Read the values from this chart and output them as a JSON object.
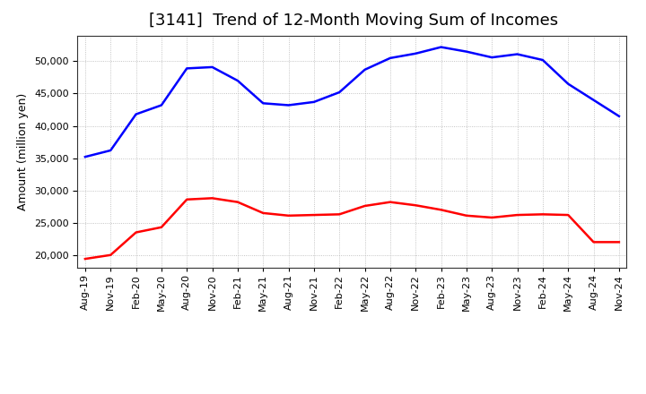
{
  "title": "[3141]  Trend of 12-Month Moving Sum of Incomes",
  "ylabel": "Amount (million yen)",
  "ylim": [
    18000,
    54000
  ],
  "yticks": [
    20000,
    25000,
    30000,
    35000,
    40000,
    45000,
    50000
  ],
  "x_labels": [
    "Aug-19",
    "Nov-19",
    "Feb-20",
    "May-20",
    "Aug-20",
    "Nov-20",
    "Feb-21",
    "May-21",
    "Aug-21",
    "Nov-21",
    "Feb-22",
    "May-22",
    "Aug-22",
    "Nov-22",
    "Feb-23",
    "May-23",
    "Aug-23",
    "Nov-23",
    "Feb-24",
    "May-24",
    "Aug-24",
    "Nov-24"
  ],
  "ordinary_income": [
    35200,
    36200,
    41800,
    43200,
    48900,
    49100,
    47000,
    43500,
    43200,
    43700,
    45200,
    48700,
    50500,
    51200,
    52200,
    51500,
    50600,
    51100,
    50200,
    46500,
    44000,
    41500
  ],
  "net_income": [
    19400,
    20000,
    23500,
    24300,
    28600,
    28800,
    28200,
    26500,
    26100,
    26200,
    26300,
    27600,
    28200,
    27700,
    27000,
    26100,
    25800,
    26200,
    26300,
    26200,
    22000,
    22000
  ],
  "ordinary_color": "#0000ff",
  "net_color": "#ff0000",
  "line_width": 1.8,
  "background_color": "#ffffff",
  "plot_background": "#ffffff",
  "grid_color": "#aaaaaa",
  "title_fontsize": 13,
  "label_fontsize": 9,
  "tick_fontsize": 8
}
